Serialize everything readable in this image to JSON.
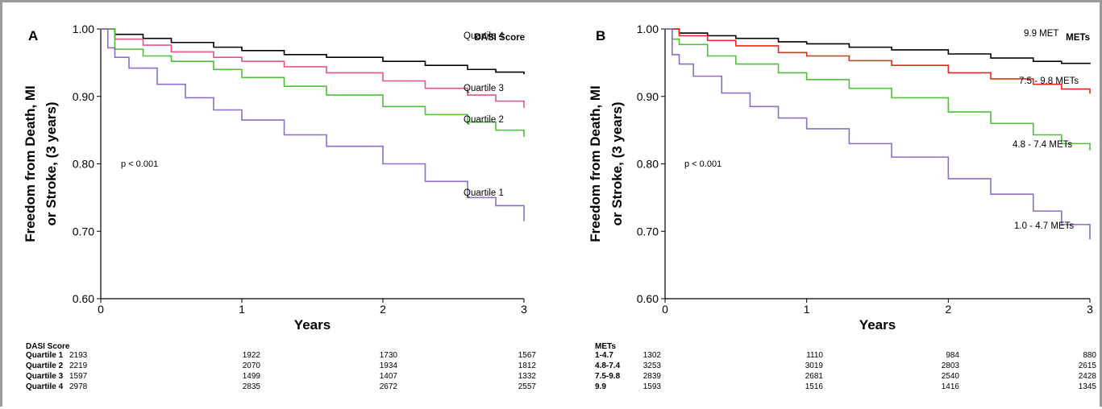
{
  "chart_data": [
    {
      "type": "line",
      "panel_label": "A",
      "legend_title": "DASI Score",
      "ylabel_line1": "Freedom from Death, MI",
      "ylabel_line2": "or Stroke, (3 years)",
      "xlabel": "Years",
      "ylim": [
        0.6,
        1.0
      ],
      "xlim": [
        0,
        3
      ],
      "yticks": [
        "0.60",
        "0.70",
        "0.80",
        "0.90",
        "1.00"
      ],
      "xticks": [
        "0",
        "1",
        "2",
        "3"
      ],
      "annotation": "p < 0.001",
      "series": [
        {
          "name": "Quartile 4",
          "color": "#000000",
          "x": [
            0,
            0.1,
            0.3,
            0.5,
            0.8,
            1.0,
            1.3,
            1.6,
            2.0,
            2.3,
            2.6,
            2.8,
            3.0
          ],
          "y": [
            1.0,
            0.992,
            0.986,
            0.98,
            0.973,
            0.968,
            0.962,
            0.958,
            0.952,
            0.946,
            0.94,
            0.936,
            0.933
          ]
        },
        {
          "name": "Quartile 3",
          "color": "#e8528a",
          "x": [
            0,
            0.1,
            0.3,
            0.5,
            0.8,
            1.0,
            1.3,
            1.6,
            2.0,
            2.3,
            2.6,
            2.8,
            3.0
          ],
          "y": [
            1.0,
            0.985,
            0.976,
            0.966,
            0.958,
            0.952,
            0.944,
            0.935,
            0.923,
            0.912,
            0.902,
            0.893,
            0.883
          ]
        },
        {
          "name": "Quartile 2",
          "color": "#4dbf38",
          "x": [
            0,
            0.1,
            0.3,
            0.5,
            0.8,
            1.0,
            1.3,
            1.6,
            2.0,
            2.3,
            2.6,
            2.8,
            3.0
          ],
          "y": [
            1.0,
            0.97,
            0.96,
            0.952,
            0.94,
            0.928,
            0.915,
            0.902,
            0.885,
            0.873,
            0.862,
            0.85,
            0.84
          ]
        },
        {
          "name": "Quartile 1",
          "color": "#8a6fc4",
          "x": [
            0,
            0.05,
            0.1,
            0.2,
            0.4,
            0.6,
            0.8,
            1.0,
            1.3,
            1.6,
            2.0,
            2.3,
            2.6,
            2.8,
            3.0
          ],
          "y": [
            1.0,
            0.972,
            0.958,
            0.942,
            0.918,
            0.898,
            0.88,
            0.865,
            0.843,
            0.826,
            0.8,
            0.774,
            0.75,
            0.738,
            0.715
          ]
        }
      ],
      "risk_table": {
        "title": "DASI Score",
        "rows": [
          {
            "label": "Quartile 1",
            "values": [
              "2193",
              "1922",
              "1730",
              "1567"
            ]
          },
          {
            "label": "Quartile 2",
            "values": [
              "2219",
              "2070",
              "1934",
              "1812"
            ]
          },
          {
            "label": "Quartile 3",
            "values": [
              "1597",
              "1499",
              "1407",
              "1332"
            ]
          },
          {
            "label": "Quartile 4",
            "values": [
              "2978",
              "2835",
              "2672",
              "2557"
            ]
          }
        ]
      }
    },
    {
      "type": "line",
      "panel_label": "B",
      "legend_title": "METs",
      "ylabel_line1": "Freedom from Death, MI",
      "ylabel_line2": "or Stroke, (3 years)",
      "xlabel": "Years",
      "ylim": [
        0.6,
        1.0
      ],
      "xlim": [
        0,
        3
      ],
      "yticks": [
        "0.60",
        "0.70",
        "0.80",
        "0.90",
        "1.00"
      ],
      "xticks": [
        "0",
        "1",
        "2",
        "3"
      ],
      "annotation": "p < 0.001",
      "series": [
        {
          "name": "9.9 MET",
          "color": "#000000",
          "x": [
            0,
            0.1,
            0.3,
            0.5,
            0.8,
            1.0,
            1.3,
            1.6,
            2.0,
            2.3,
            2.6,
            2.8,
            3.0
          ],
          "y": [
            1.0,
            0.994,
            0.99,
            0.986,
            0.981,
            0.978,
            0.973,
            0.969,
            0.963,
            0.957,
            0.952,
            0.949,
            0.948
          ]
        },
        {
          "name": "7.5 - 9.8 METs",
          "color": "#e8281e",
          "x": [
            0,
            0.1,
            0.3,
            0.5,
            0.8,
            1.0,
            1.3,
            1.6,
            2.0,
            2.3,
            2.6,
            2.8,
            3.0
          ],
          "y": [
            1.0,
            0.99,
            0.983,
            0.975,
            0.965,
            0.96,
            0.953,
            0.946,
            0.935,
            0.926,
            0.918,
            0.911,
            0.904
          ]
        },
        {
          "name": "4.8 - 7.4 METs",
          "color": "#4dbf38",
          "x": [
            0,
            0.05,
            0.1,
            0.3,
            0.5,
            0.8,
            1.0,
            1.3,
            1.6,
            2.0,
            2.3,
            2.6,
            2.8,
            3.0
          ],
          "y": [
            1.0,
            0.985,
            0.977,
            0.96,
            0.948,
            0.935,
            0.925,
            0.912,
            0.898,
            0.877,
            0.86,
            0.843,
            0.83,
            0.82
          ]
        },
        {
          "name": "1.0 - 4.7 METs",
          "color": "#8a6fc4",
          "x": [
            0,
            0.05,
            0.1,
            0.2,
            0.4,
            0.6,
            0.8,
            1.0,
            1.3,
            1.6,
            2.0,
            2.3,
            2.6,
            2.8,
            3.0
          ],
          "y": [
            1.0,
            0.962,
            0.948,
            0.93,
            0.905,
            0.885,
            0.868,
            0.852,
            0.83,
            0.81,
            0.778,
            0.755,
            0.73,
            0.71,
            0.688
          ]
        }
      ],
      "risk_table": {
        "title": "METs",
        "rows": [
          {
            "label": "1-4.7",
            "values": [
              "1302",
              "1110",
              "984",
              "880"
            ]
          },
          {
            "label": "4.8-7.4",
            "values": [
              "3253",
              "3019",
              "2803",
              "2615"
            ]
          },
          {
            "label": "7.5-9.8",
            "values": [
              "2839",
              "2681",
              "2540",
              "2428"
            ]
          },
          {
            "label": "9.9",
            "values": [
              "1593",
              "1516",
              "1416",
              "1345"
            ]
          }
        ]
      }
    }
  ]
}
